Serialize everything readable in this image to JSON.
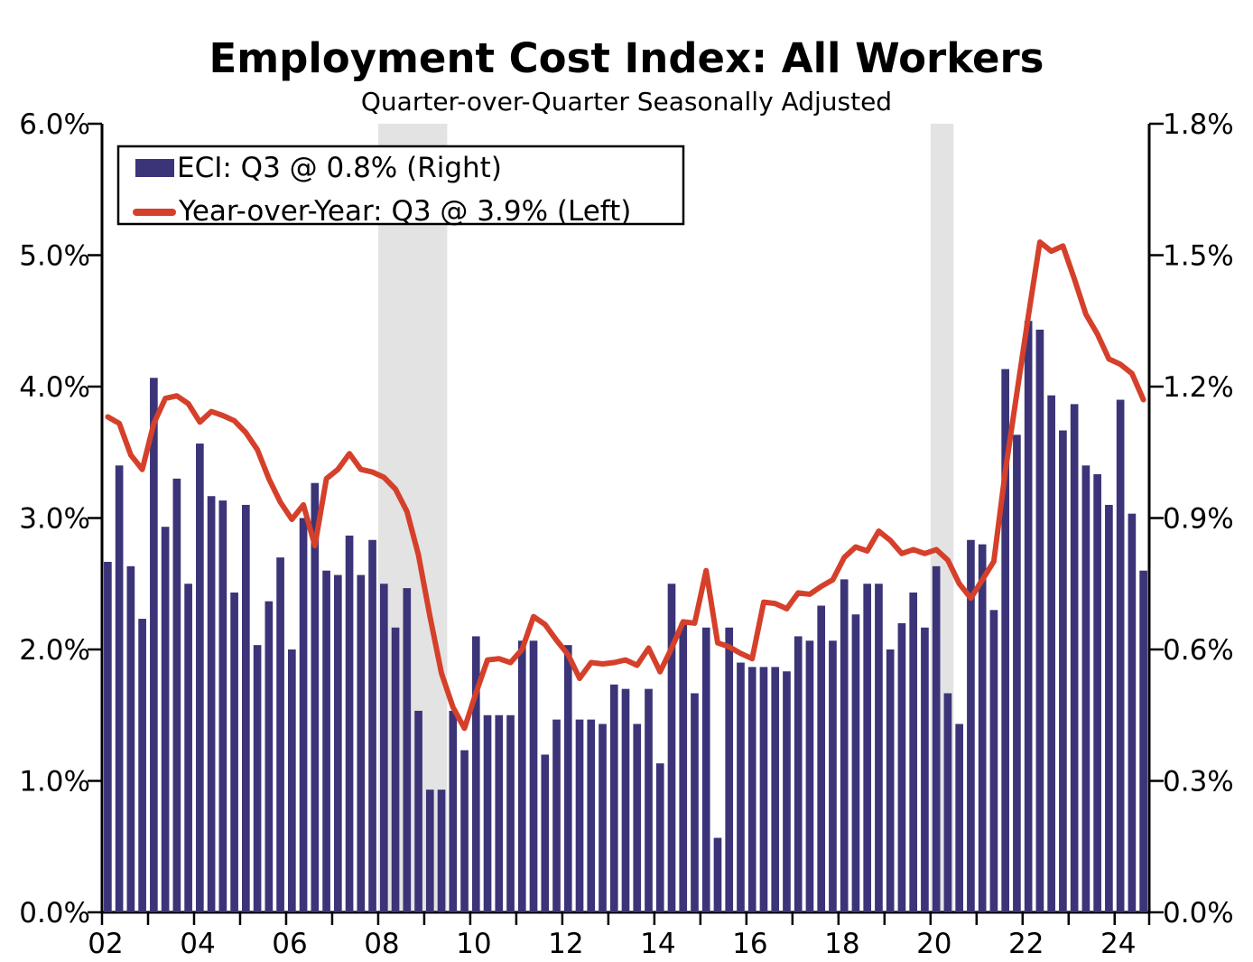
{
  "title": "Employment Cost Index: All Workers",
  "subtitle": "Quarter-over-Quarter Seasonally Adjusted",
  "legend": {
    "position": "top-left",
    "items": [
      {
        "label": "ECI: Q3 @ 0.8% (Right)",
        "marker": "bar-swatch",
        "color": "#3b3478"
      },
      {
        "label": "Year-over-Year: Q3 @ 3.9% (Left)",
        "marker": "line-swatch",
        "color": "#d5402b"
      }
    ]
  },
  "colors": {
    "bar": "#3b3478",
    "line": "#d5402b",
    "recession_band": "#e3e3e3",
    "axis": "#000000",
    "background": "#ffffff"
  },
  "chart_data": {
    "type": "bar+line",
    "frequency": "quarterly",
    "start_quarter": "2002Q1",
    "end_quarter": "2024Q3",
    "grid": "off",
    "left_axis": {
      "min": 0,
      "max": 6,
      "tick_step": 1,
      "tick_labels": [
        "0.0%",
        "1.0%",
        "2.0%",
        "3.0%",
        "4.0%",
        "5.0%",
        "6.0%"
      ],
      "series_on_axis": "Year-over-Year (line)"
    },
    "right_axis": {
      "min": 0,
      "max": 1.8,
      "tick_step": 0.3,
      "tick_labels": [
        "0.0%",
        "0.3%",
        "0.6%",
        "0.9%",
        "1.2%",
        "1.5%",
        "1.8%"
      ],
      "series_on_axis": "ECI QoQ (bars)"
    },
    "x_axis": {
      "tick_labels": [
        "02",
        "04",
        "06",
        "08",
        "10",
        "12",
        "14",
        "16",
        "18",
        "20",
        "22",
        "24"
      ],
      "label_years": [
        2002,
        2004,
        2006,
        2008,
        2010,
        2012,
        2014,
        2016,
        2018,
        2020,
        2022,
        2024
      ],
      "minor_tick_every_year": true
    },
    "series": [
      {
        "name": "ECI quarter-over-quarter, seasonally adjusted (Right axis, %)",
        "type": "bar",
        "axis": "right",
        "values": [
          0.8,
          1.02,
          0.79,
          0.67,
          1.22,
          0.88,
          0.99,
          0.75,
          1.07,
          0.95,
          0.94,
          0.73,
          0.93,
          0.61,
          0.71,
          0.81,
          0.6,
          0.9,
          0.98,
          0.78,
          0.77,
          0.86,
          0.77,
          0.85,
          0.75,
          0.65,
          0.74,
          0.46,
          0.28,
          0.28,
          0.46,
          0.37,
          0.63,
          0.45,
          0.45,
          0.45,
          0.62,
          0.62,
          0.36,
          0.44,
          0.61,
          0.44,
          0.44,
          0.43,
          0.52,
          0.51,
          0.43,
          0.51,
          0.34,
          0.75,
          0.66,
          0.5,
          0.65,
          0.17,
          0.65,
          0.57,
          0.56,
          0.56,
          0.56,
          0.55,
          0.63,
          0.62,
          0.7,
          0.62,
          0.76,
          0.68,
          0.75,
          0.75,
          0.6,
          0.66,
          0.73,
          0.65,
          0.79,
          0.5,
          0.43,
          0.85,
          0.84,
          0.69,
          1.24,
          1.09,
          1.35,
          1.33,
          1.18,
          1.1,
          1.16,
          1.02,
          1.0,
          0.93,
          1.17,
          0.91,
          0.78
        ]
      },
      {
        "name": "Year-over-Year (Left axis, %)",
        "type": "line",
        "axis": "left",
        "values": [
          3.77,
          3.72,
          3.48,
          3.37,
          3.72,
          3.91,
          3.93,
          3.87,
          3.73,
          3.81,
          3.78,
          3.74,
          3.65,
          3.52,
          3.3,
          3.12,
          2.99,
          3.1,
          2.79,
          3.3,
          3.37,
          3.49,
          3.37,
          3.35,
          3.31,
          3.22,
          3.05,
          2.72,
          2.25,
          1.82,
          1.56,
          1.4,
          1.67,
          1.92,
          1.93,
          1.9,
          2.0,
          2.25,
          2.19,
          2.07,
          1.96,
          1.78,
          1.9,
          1.89,
          1.9,
          1.92,
          1.88,
          2.01,
          1.83,
          2.01,
          2.21,
          2.2,
          2.6,
          2.05,
          2.02,
          1.97,
          1.93,
          2.36,
          2.35,
          2.31,
          2.43,
          2.42,
          2.48,
          2.53,
          2.7,
          2.78,
          2.75,
          2.9,
          2.83,
          2.73,
          2.76,
          2.73,
          2.76,
          2.68,
          2.5,
          2.39,
          2.53,
          2.67,
          3.36,
          3.95,
          4.54,
          5.1,
          5.03,
          5.07,
          4.82,
          4.55,
          4.4,
          4.21,
          4.17,
          4.1,
          3.9
        ]
      }
    ],
    "recession_bands": [
      {
        "start_quarter_index": 24,
        "end_quarter_index": 29,
        "label": "2008Q1-2009Q2 recession"
      },
      {
        "start_quarter_index": 72,
        "end_quarter_index": 73,
        "label": "2020 recession"
      }
    ]
  }
}
